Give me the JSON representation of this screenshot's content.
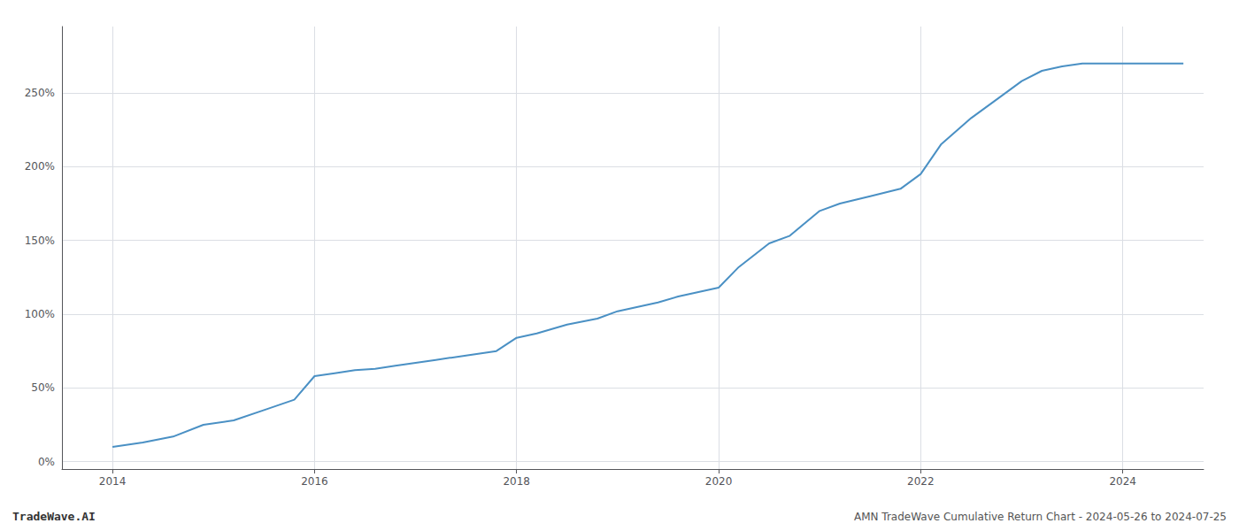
{
  "chart_data": {
    "type": "line",
    "annotations": [
      "TradeWave.AI",
      "AMN TradeWave Cumulative Return Chart - 2024-05-26 to 2024-07-25"
    ],
    "x": [
      2014.0,
      2014.3,
      2014.6,
      2014.9,
      2015.2,
      2015.5,
      2015.8,
      2016.0,
      2016.2,
      2016.4,
      2016.6,
      2016.8,
      2017.0,
      2017.2,
      2017.5,
      2017.8,
      2018.0,
      2018.2,
      2018.5,
      2018.8,
      2019.0,
      2019.2,
      2019.4,
      2019.6,
      2019.8,
      2020.0,
      2020.2,
      2020.5,
      2020.7,
      2021.0,
      2021.2,
      2021.5,
      2021.8,
      2022.0,
      2022.2,
      2022.5,
      2022.8,
      2023.0,
      2023.2,
      2023.4,
      2023.6,
      2023.8,
      2024.0,
      2024.3,
      2024.6
    ],
    "values": [
      10,
      13,
      17,
      25,
      28,
      35,
      42,
      58,
      60,
      62,
      63,
      65,
      67,
      69,
      72,
      75,
      84,
      87,
      93,
      97,
      102,
      105,
      108,
      112,
      115,
      118,
      132,
      148,
      153,
      170,
      175,
      180,
      185,
      195,
      215,
      233,
      248,
      258,
      265,
      268,
      270,
      270,
      270,
      270,
      270
    ],
    "color": "#4a90c4",
    "xlim": [
      2013.5,
      2024.8
    ],
    "xticks": [
      2014,
      2016,
      2018,
      2020,
      2022,
      2024
    ],
    "ylim": [
      -5,
      295
    ],
    "yticks": [
      {
        "value": 0,
        "label": "0%"
      },
      {
        "value": 50,
        "label": "50%"
      },
      {
        "value": 100,
        "label": "100%"
      },
      {
        "value": 150,
        "label": "150%"
      },
      {
        "value": 200,
        "label": "200%"
      },
      {
        "value": 250,
        "label": "250%"
      }
    ],
    "grid": true
  }
}
